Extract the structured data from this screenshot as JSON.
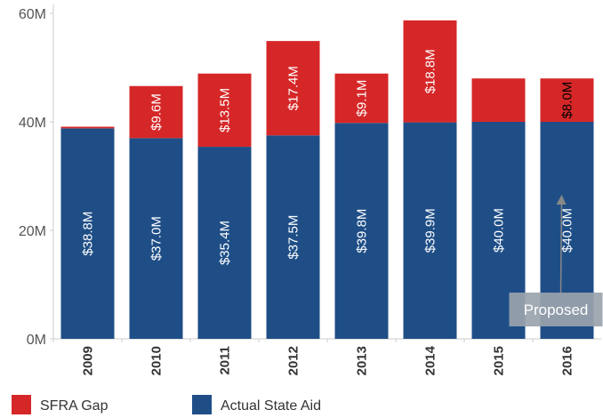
{
  "chart_data": {
    "type": "bar",
    "stacked": true,
    "categories": [
      "2009",
      "2010",
      "2011",
      "2012",
      "2013",
      "2014",
      "2015",
      "2016"
    ],
    "series": [
      {
        "name": "Actual State Aid",
        "color": "#1f4e87",
        "values": [
          38.8,
          37.0,
          35.4,
          37.5,
          39.8,
          39.9,
          40.0,
          40.0
        ],
        "labels": [
          "$38.8M",
          "$37.0M",
          "$35.4M",
          "$37.5M",
          "$39.8M",
          "$39.9M",
          "$40.0M",
          "$40.0M"
        ],
        "label_color": "#ffffff"
      },
      {
        "name": "SFRA Gap",
        "color": "#d62728",
        "values": [
          0.3,
          9.6,
          13.5,
          17.4,
          9.1,
          18.8,
          8.0,
          8.0
        ],
        "labels": [
          "",
          "$9.6M",
          "$13.5M",
          "$17.4M",
          "$9.1M",
          "$18.8M",
          "",
          "$8.0M"
        ],
        "label_colors": [
          "#ffffff",
          "#ffffff",
          "#ffffff",
          "#ffffff",
          "#ffffff",
          "#ffffff",
          "#ffffff",
          "#000000"
        ]
      }
    ],
    "y_ticks": [
      0,
      20,
      40,
      60
    ],
    "y_tick_labels": [
      "0M",
      "20M",
      "40M",
      "60M"
    ],
    "ylim": [
      0,
      62
    ],
    "grid": false,
    "legend": {
      "position": "bottom-left",
      "items": [
        {
          "label": "SFRA Gap",
          "color": "#d62728"
        },
        {
          "label": "Actual State Aid",
          "color": "#1f4e87"
        }
      ]
    },
    "annotation": {
      "text": "Proposed",
      "category": "2016"
    }
  }
}
